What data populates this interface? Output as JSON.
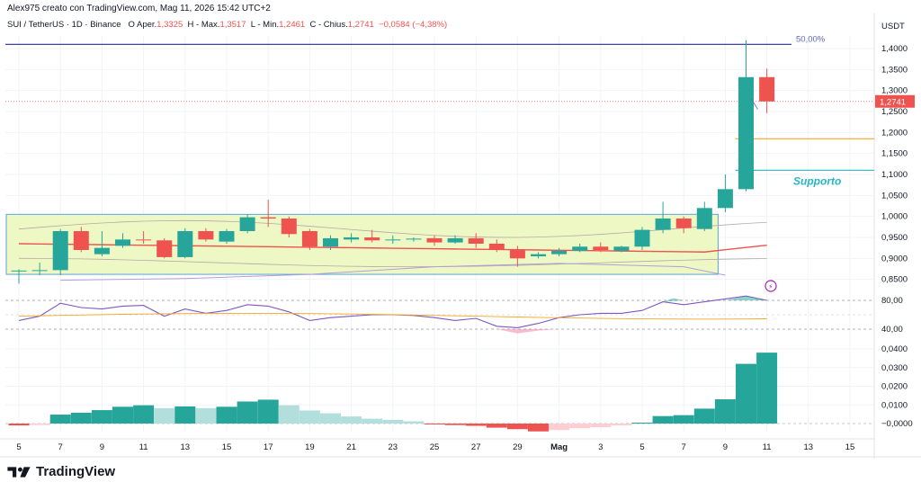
{
  "header": {
    "credit": "Alex975 creato con TradingView.com, Mag 11, 2026 15:42 UTC+2",
    "symbol": "SUI / TetherUS · 1D · Binance",
    "open_label": "O",
    "open_text": "Aper.",
    "open_value": "1,3325",
    "high_text": "H",
    "high_label": "Max.",
    "high_value": "1,3517",
    "low_text": "L",
    "low_label": "Min.",
    "low_value": "1,2461",
    "close_text": "C",
    "close_label": "Chius.",
    "close_value": "1,2741",
    "change_value": "−0,0584 (−4,38%)"
  },
  "price_axis": {
    "currency": "USDT",
    "ticks": [
      "1,4000",
      "1,3500",
      "1,3000",
      "1,2500",
      "1,2000",
      "1,1500",
      "1,1000",
      "1,0500",
      "1,0000",
      "0,9500",
      "0,9000",
      "0,8500"
    ],
    "last_price": "1,2741",
    "rsi_ticks": [
      "80,00",
      "40,00"
    ],
    "macd_ticks": [
      "0,0400",
      "0,0300",
      "0,0200",
      "0,0100",
      "−0,0000"
    ]
  },
  "time_axis": {
    "labels": [
      "5",
      "7",
      "9",
      "11",
      "13",
      "15",
      "17",
      "19",
      "21",
      "23",
      "25",
      "27",
      "29",
      "Mag",
      "3",
      "5",
      "7",
      "9",
      "11",
      "13",
      "15"
    ]
  },
  "annotations": {
    "fib_label": "50,00%",
    "support_label": "Supporto"
  },
  "colors": {
    "up": "#26a69a",
    "down": "#ef5350",
    "range_box_fill": "#eef8c4",
    "range_box_border": "#5ba3d9",
    "fib_line": "#2a2e8c",
    "support_line": "#26b6c6",
    "orange_line": "#f5a623",
    "rsi": "#7e57c2"
  },
  "brand": {
    "name": "TradingView"
  },
  "chart_data": {
    "type": "candlestick",
    "dates": [
      "Apr 5",
      "Apr 6",
      "Apr 7",
      "Apr 8",
      "Apr 9",
      "Apr 10",
      "Apr 11",
      "Apr 12",
      "Apr 13",
      "Apr 14",
      "Apr 15",
      "Apr 16",
      "Apr 17",
      "Apr 18",
      "Apr 19",
      "Apr 20",
      "Apr 21",
      "Apr 22",
      "Apr 23",
      "Apr 24",
      "Apr 25",
      "Apr 26",
      "Apr 27",
      "Apr 28",
      "Apr 29",
      "Apr 30",
      "May 1",
      "May 2",
      "May 3",
      "May 4",
      "May 5",
      "May 6",
      "May 7",
      "May 8",
      "May 9",
      "May 10",
      "May 11"
    ],
    "candles": [
      {
        "o": 0.87,
        "h": 0.874,
        "l": 0.84,
        "c": 0.871
      },
      {
        "o": 0.871,
        "h": 0.89,
        "l": 0.86,
        "c": 0.872
      },
      {
        "o": 0.872,
        "h": 0.97,
        "l": 0.86,
        "c": 0.965
      },
      {
        "o": 0.965,
        "h": 0.975,
        "l": 0.915,
        "c": 0.92
      },
      {
        "o": 0.91,
        "h": 0.965,
        "l": 0.905,
        "c": 0.925
      },
      {
        "o": 0.93,
        "h": 0.96,
        "l": 0.925,
        "c": 0.945
      },
      {
        "o": 0.945,
        "h": 0.965,
        "l": 0.935,
        "c": 0.943
      },
      {
        "o": 0.943,
        "h": 0.948,
        "l": 0.9,
        "c": 0.903
      },
      {
        "o": 0.903,
        "h": 0.972,
        "l": 0.9,
        "c": 0.965
      },
      {
        "o": 0.965,
        "h": 0.972,
        "l": 0.94,
        "c": 0.945
      },
      {
        "o": 0.94,
        "h": 0.97,
        "l": 0.935,
        "c": 0.965
      },
      {
        "o": 0.965,
        "h": 1.005,
        "l": 0.96,
        "c": 0.998
      },
      {
        "o": 0.998,
        "h": 1.04,
        "l": 0.975,
        "c": 0.995
      },
      {
        "o": 0.995,
        "h": 1.0,
        "l": 0.95,
        "c": 0.958
      },
      {
        "o": 0.965,
        "h": 0.97,
        "l": 0.92,
        "c": 0.928
      },
      {
        "o": 0.928,
        "h": 0.955,
        "l": 0.92,
        "c": 0.948
      },
      {
        "o": 0.945,
        "h": 0.96,
        "l": 0.938,
        "c": 0.95
      },
      {
        "o": 0.95,
        "h": 0.968,
        "l": 0.938,
        "c": 0.943
      },
      {
        "o": 0.943,
        "h": 0.955,
        "l": 0.935,
        "c": 0.945
      },
      {
        "o": 0.945,
        "h": 0.95,
        "l": 0.94,
        "c": 0.947
      },
      {
        "o": 0.948,
        "h": 0.955,
        "l": 0.93,
        "c": 0.938
      },
      {
        "o": 0.938,
        "h": 0.955,
        "l": 0.935,
        "c": 0.948
      },
      {
        "o": 0.948,
        "h": 0.96,
        "l": 0.925,
        "c": 0.935
      },
      {
        "o": 0.935,
        "h": 0.945,
        "l": 0.915,
        "c": 0.92
      },
      {
        "o": 0.92,
        "h": 0.93,
        "l": 0.88,
        "c": 0.9
      },
      {
        "o": 0.905,
        "h": 0.915,
        "l": 0.9,
        "c": 0.91
      },
      {
        "o": 0.91,
        "h": 0.925,
        "l": 0.905,
        "c": 0.918
      },
      {
        "o": 0.918,
        "h": 0.935,
        "l": 0.915,
        "c": 0.928
      },
      {
        "o": 0.928,
        "h": 0.938,
        "l": 0.915,
        "c": 0.92
      },
      {
        "o": 0.918,
        "h": 0.93,
        "l": 0.915,
        "c": 0.928
      },
      {
        "o": 0.928,
        "h": 0.975,
        "l": 0.92,
        "c": 0.968
      },
      {
        "o": 0.968,
        "h": 1.035,
        "l": 0.96,
        "c": 0.995
      },
      {
        "o": 0.995,
        "h": 1.0,
        "l": 0.96,
        "c": 0.972
      },
      {
        "o": 0.97,
        "h": 1.035,
        "l": 0.965,
        "c": 1.02
      },
      {
        "o": 1.02,
        "h": 1.1,
        "l": 1.01,
        "c": 1.065
      },
      {
        "o": 1.065,
        "h": 1.42,
        "l": 1.06,
        "c": 1.332
      },
      {
        "o": 1.332,
        "h": 1.352,
        "l": 1.246,
        "c": 1.274
      }
    ],
    "macd_histogram": [
      -0.001,
      -0.0008,
      0.0048,
      0.0058,
      0.0072,
      0.009,
      0.0098,
      0.0082,
      0.0092,
      0.0082,
      0.009,
      0.0118,
      0.0128,
      0.0098,
      0.007,
      0.0055,
      0.0038,
      0.0026,
      0.002,
      0.0012,
      -0.0005,
      -0.0008,
      -0.0012,
      -0.0022,
      -0.003,
      -0.0042,
      -0.0035,
      -0.0025,
      -0.002,
      -0.001,
      0.0005,
      0.004,
      0.0045,
      0.008,
      0.013,
      0.032,
      0.038
    ],
    "rsi": [
      52,
      58,
      76,
      70,
      68,
      72,
      73,
      58,
      68,
      62,
      66,
      74,
      72,
      64,
      52,
      56,
      58,
      60,
      60,
      59,
      56,
      52,
      55,
      44,
      42,
      48,
      56,
      60,
      62,
      62,
      66,
      78,
      74,
      78,
      82,
      86,
      80
    ],
    "ylim": [
      0.83,
      1.43
    ],
    "fib_level": 1.41,
    "support_level": 1.11,
    "orange_level": 1.185,
    "range_box": {
      "top": 1.005,
      "bottom": 0.862,
      "from": "Apr 5",
      "to": "May 8"
    }
  }
}
